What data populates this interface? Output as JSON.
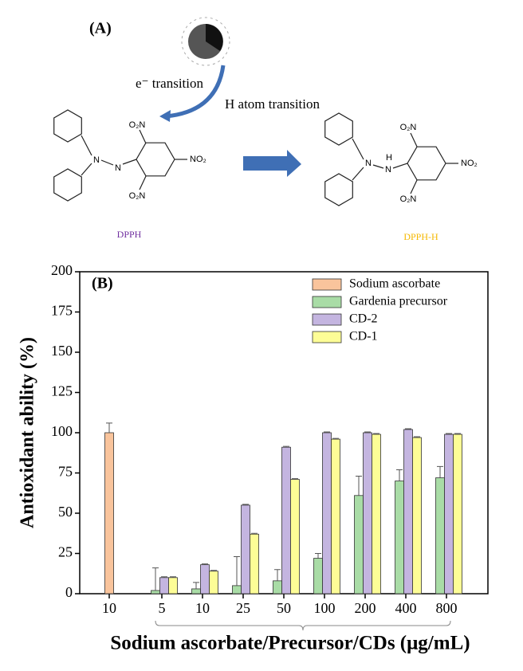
{
  "panel_a": {
    "label": "(A)",
    "electron_label": "e⁻ transition",
    "hydrogen_label": "H atom transition",
    "reactant": {
      "name": "DPPH",
      "groups": [
        "N",
        "N",
        "O₂N",
        "O₂N",
        "NO₂"
      ]
    },
    "product": {
      "name": "DPPH-H",
      "groups": [
        "N",
        "N",
        "H",
        "O₂N",
        "O₂N",
        "NO₂"
      ]
    }
  },
  "chart_data": {
    "type": "bar",
    "panel_label": "(B)",
    "x_label": "Sodium ascorbate/Precursor/CDs (μg/mL)",
    "y_label": "Antioxidant ability (%)",
    "categories": [
      "10",
      "5",
      "10",
      "25",
      "50",
      "100",
      "200",
      "400",
      "800"
    ],
    "series": [
      {
        "name": "Sodium ascorbate",
        "color": "#f9c49c",
        "values": [
          100,
          null,
          null,
          null,
          null,
          null,
          null,
          null,
          null
        ],
        "errors": [
          6,
          null,
          null,
          null,
          null,
          null,
          null,
          null,
          null
        ]
      },
      {
        "name": "Gardenia precursor",
        "color": "#a9dca6",
        "values": [
          null,
          2,
          3,
          5,
          8,
          22,
          61,
          70,
          72
        ],
        "errors": [
          null,
          14,
          4,
          18,
          7,
          3,
          12,
          7,
          7
        ]
      },
      {
        "name": "CD-2",
        "color": "#c4b5e0",
        "values": [
          null,
          10,
          18,
          55,
          91,
          100,
          100,
          102,
          99
        ],
        "errors": [
          null,
          0.5,
          0.5,
          0.5,
          0.5,
          0.5,
          0.5,
          0.5,
          0.5
        ]
      },
      {
        "name": "CD-1",
        "color": "#fdfd96",
        "values": [
          null,
          10,
          14,
          37,
          71,
          96,
          99,
          97,
          99
        ],
        "errors": [
          null,
          0.5,
          0.5,
          0.5,
          0.5,
          0.5,
          0.5,
          0.5,
          0.5
        ]
      }
    ],
    "ylim": [
      0,
      200
    ],
    "yticks": [
      0,
      25,
      50,
      75,
      100,
      125,
      150,
      175,
      200
    ],
    "legend": "top-right"
  }
}
